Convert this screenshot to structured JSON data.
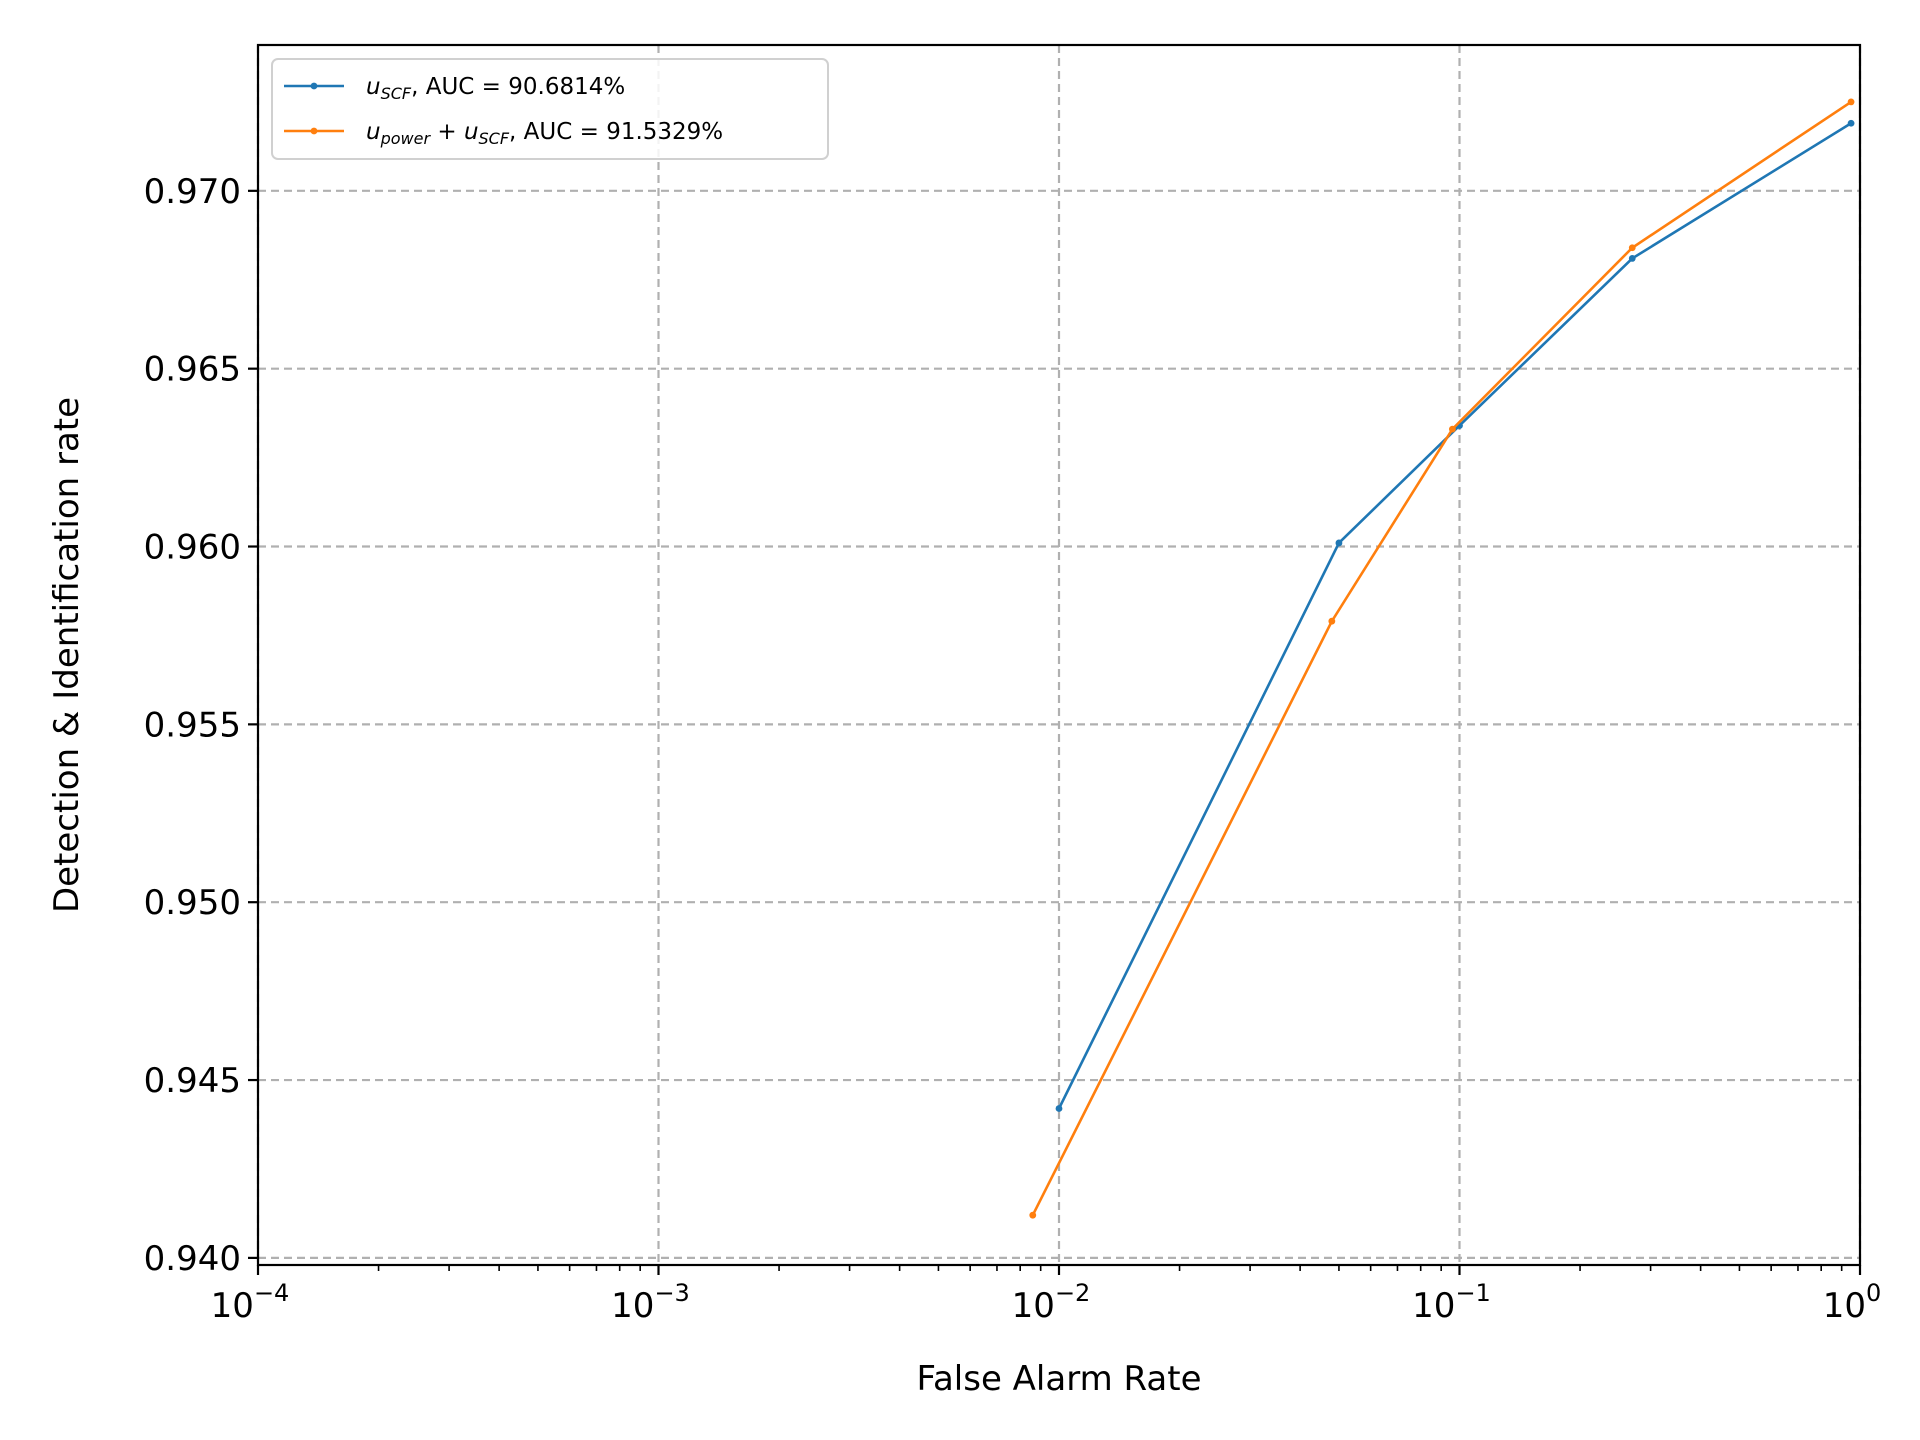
{
  "chart_data": {
    "type": "line",
    "title": "",
    "xlabel": "False Alarm Rate",
    "ylabel": "Detection & Identification rate",
    "xscale": "log",
    "xlim": [
      0.0001,
      1
    ],
    "ylim": [
      0.9398,
      0.9741
    ],
    "xticks": [
      {
        "value": 0.0001,
        "base": "10",
        "exp": "−4"
      },
      {
        "value": 0.001,
        "base": "10",
        "exp": "−3"
      },
      {
        "value": 0.01,
        "base": "10",
        "exp": "−2"
      },
      {
        "value": 0.1,
        "base": "10",
        "exp": "−1"
      },
      {
        "value": 1,
        "base": "10",
        "exp": "0"
      }
    ],
    "yticks": [
      {
        "value": 0.94,
        "label": "0.940"
      },
      {
        "value": 0.945,
        "label": "0.945"
      },
      {
        "value": 0.95,
        "label": "0.950"
      },
      {
        "value": 0.955,
        "label": "0.955"
      },
      {
        "value": 0.96,
        "label": "0.960"
      },
      {
        "value": 0.965,
        "label": "0.965"
      },
      {
        "value": 0.97,
        "label": "0.970"
      }
    ],
    "grid": true,
    "legend_position": "top-left",
    "series": [
      {
        "name_main": "u",
        "name_sub": "SCF",
        "name_plus": "",
        "name_main2": "",
        "name_sub2": "",
        "auc_label": ", AUC = 90.6814%",
        "color": "#1f77b4",
        "x": [
          0.01,
          0.05,
          0.1,
          0.27,
          0.95
        ],
        "y": [
          0.9442,
          0.9601,
          0.9634,
          0.9681,
          0.9719
        ]
      },
      {
        "name_main": "u",
        "name_sub": "power",
        "name_plus": " + ",
        "name_main2": "u",
        "name_sub2": "SCF",
        "auc_label": ", AUC = 91.5329%",
        "color": "#ff7f0e",
        "x": [
          0.0086,
          0.048,
          0.096,
          0.27,
          0.95
        ],
        "y": [
          0.9412,
          0.9579,
          0.9633,
          0.9684,
          0.9725
        ]
      }
    ]
  }
}
